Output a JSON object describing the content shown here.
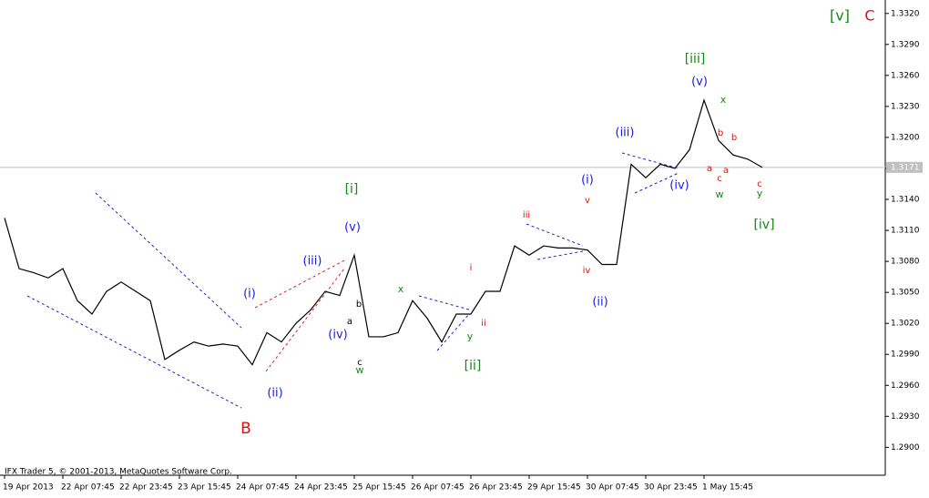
{
  "chart_data": {
    "type": "line",
    "categories": [
      "19 Apr 2013",
      null,
      null,
      null,
      "22 Apr 07:45",
      null,
      null,
      null,
      "22 Apr 23:45",
      null,
      null,
      null,
      "23 Apr 15:45",
      null,
      null,
      null,
      "24 Apr 07:45",
      null,
      null,
      null,
      "24 Apr 23:45",
      null,
      null,
      null,
      "25 Apr 15:45",
      null,
      null,
      null,
      "26 Apr 07:45",
      null,
      null,
      null,
      "26 Apr 23:45",
      null,
      null,
      null,
      "29 Apr 15:45",
      null,
      null,
      null,
      "30 Apr 07:45",
      null,
      null,
      null,
      "30 Apr 23:45",
      null,
      null,
      null,
      "1 May 15:45",
      null,
      null,
      null,
      null
    ],
    "values": [
      1.3122,
      1.3073,
      1.3069,
      1.3064,
      1.3073,
      1.3042,
      1.3029,
      1.3051,
      1.306,
      1.3051,
      1.3042,
      1.2985,
      1.2994,
      1.3002,
      1.2998,
      1.3,
      1.2998,
      1.298,
      1.3011,
      1.3002,
      1.302,
      1.3033,
      1.3051,
      1.3047,
      1.3086,
      1.3007,
      1.3007,
      1.3011,
      1.3042,
      1.3025,
      1.3002,
      1.3029,
      1.3029,
      1.3051,
      1.3051,
      1.3095,
      1.3086,
      1.3095,
      1.3093,
      1.3093,
      1.3091,
      1.3077,
      1.3077,
      1.3174,
      1.3161,
      1.3174,
      1.317,
      1.3188,
      1.3236,
      1.3197,
      1.3183,
      1.3179,
      1.3171
    ],
    "color": "#000000",
    "ylim": [
      1.2873,
      1.3333
    ],
    "yticks": [
      {
        "value": 1.29,
        "label": "1.2900"
      },
      {
        "value": 1.293,
        "label": "1.2930"
      },
      {
        "value": 1.296,
        "label": "1.2960"
      },
      {
        "value": 1.299,
        "label": "1.2990"
      },
      {
        "value": 1.302,
        "label": "1.3020"
      },
      {
        "value": 1.305,
        "label": "1.3050"
      },
      {
        "value": 1.308,
        "label": "1.3080"
      },
      {
        "value": 1.311,
        "label": "1.3110"
      },
      {
        "value": 1.314,
        "label": "1.3140"
      },
      {
        "value": 1.317,
        "label": "1.3170"
      },
      {
        "value": 1.32,
        "label": "1.3200"
      },
      {
        "value": 1.323,
        "label": "1.3230"
      },
      {
        "value": 1.326,
        "label": "1.3260"
      },
      {
        "value": 1.329,
        "label": "1.3290"
      },
      {
        "value": 1.332,
        "label": "1.3320"
      }
    ],
    "current_price": 1.3171,
    "copyright": "IFX Trader 5, © 2001-2013, MetaQuotes Software Corp.",
    "annotations": [
      {
        "text": "[v]",
        "color": "#138a13"
      },
      {
        "text": "C",
        "color": "#e01010"
      },
      {
        "text": "[iii]",
        "color": "#138a13"
      },
      {
        "text": "(v)",
        "color": "#1a1aee"
      },
      {
        "text": "x",
        "color": "#138a13"
      },
      {
        "text": "(iii)",
        "color": "#1a1aee"
      },
      {
        "text": "b",
        "color": "#e01010"
      },
      {
        "text": "b",
        "color": "#e01010"
      },
      {
        "text": "(i)",
        "color": "#1a1aee"
      },
      {
        "text": "a",
        "color": "#e01010"
      },
      {
        "text": "c",
        "color": "#e01010"
      },
      {
        "text": "a",
        "color": "#e01010"
      },
      {
        "text": "(iv)",
        "color": "#1a1aee"
      },
      {
        "text": "w",
        "color": "#138a13"
      },
      {
        "text": "c",
        "color": "#e01010"
      },
      {
        "text": "y",
        "color": "#138a13"
      },
      {
        "text": "[i]",
        "color": "#138a13"
      },
      {
        "text": "v",
        "color": "#e01010"
      },
      {
        "text": "[iv]",
        "color": "#138a13"
      },
      {
        "text": "(v)",
        "color": "#1a1aee"
      },
      {
        "text": "iii",
        "color": "#e01010"
      },
      {
        "text": "(iii)",
        "color": "#1a1aee"
      },
      {
        "text": "i",
        "color": "#e01010"
      },
      {
        "text": "iv",
        "color": "#e01010"
      },
      {
        "text": "x",
        "color": "#138a13"
      },
      {
        "text": "(i)",
        "color": "#1a1aee"
      },
      {
        "text": "(ii)",
        "color": "#1a1aee"
      },
      {
        "text": "b",
        "color": "#000000"
      },
      {
        "text": "a",
        "color": "#000000"
      },
      {
        "text": "ii",
        "color": "#e01010"
      },
      {
        "text": "(iv)",
        "color": "#1a1aee"
      },
      {
        "text": "y",
        "color": "#138a13"
      },
      {
        "text": "c",
        "color": "#000000"
      },
      {
        "text": "w",
        "color": "#138a13"
      },
      {
        "text": "[ii]",
        "color": "#138a13"
      },
      {
        "text": "(ii)",
        "color": "#1a1aee"
      },
      {
        "text": "B",
        "color": "#e01010"
      }
    ]
  }
}
